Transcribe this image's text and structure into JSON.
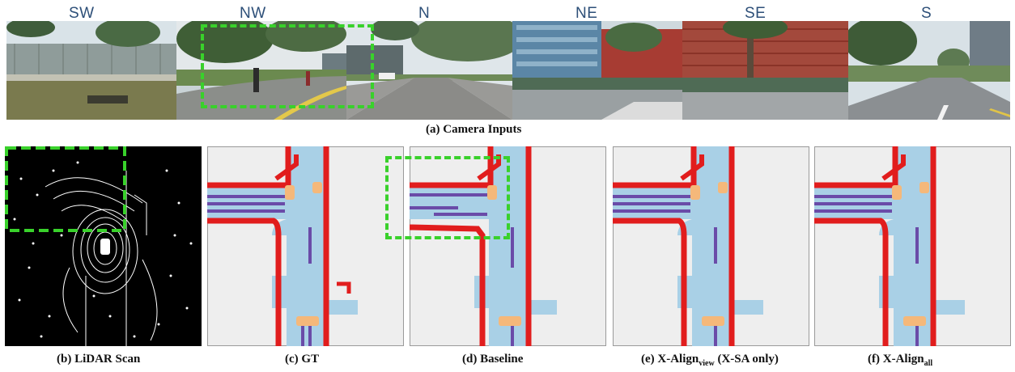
{
  "camera_labels": [
    "SW",
    "NW",
    "N",
    "NE",
    "SE",
    "S"
  ],
  "captions": {
    "camera": "(a) Camera Inputs",
    "lidar": "(b) LiDAR Scan",
    "gt": "(c) GT",
    "baseline": "(d) Baseline",
    "xview_prefix": "(e) X-Align",
    "xview_sub": "view",
    "xview_suffix": " (X-SA only)",
    "xall_prefix": "(f) X-Align",
    "xall_sub": "all"
  },
  "colors": {
    "road": "#a9d0e6",
    "boundary": "#e11d1d",
    "lane_divider": "#6a4ba8",
    "crossing": "#f5b87a",
    "background": "#eeeeee",
    "highlight_box": "#39d12b",
    "direction_label": "#2d4f78"
  }
}
